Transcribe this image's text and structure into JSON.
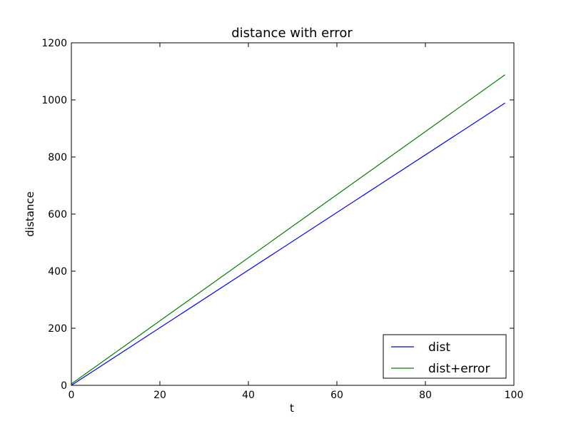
{
  "chart_data": {
    "type": "line",
    "title": "distance with error",
    "xlabel": "t",
    "ylabel": "distance",
    "xlim": [
      0,
      100
    ],
    "ylim": [
      0,
      1200
    ],
    "xticks": [
      "0",
      "20",
      "40",
      "60",
      "80",
      "100"
    ],
    "yticks": [
      "0",
      "200",
      "400",
      "600",
      "800",
      "1000",
      "1200"
    ],
    "grid": false,
    "legend_position": "lower-right",
    "series": [
      {
        "name": "dist",
        "color": "#0000ff",
        "x": [
          0,
          98
        ],
        "y": [
          0,
          989
        ]
      },
      {
        "name": "dist+error",
        "color": "#008000",
        "x": [
          0,
          98
        ],
        "y": [
          5,
          1088
        ]
      }
    ]
  }
}
